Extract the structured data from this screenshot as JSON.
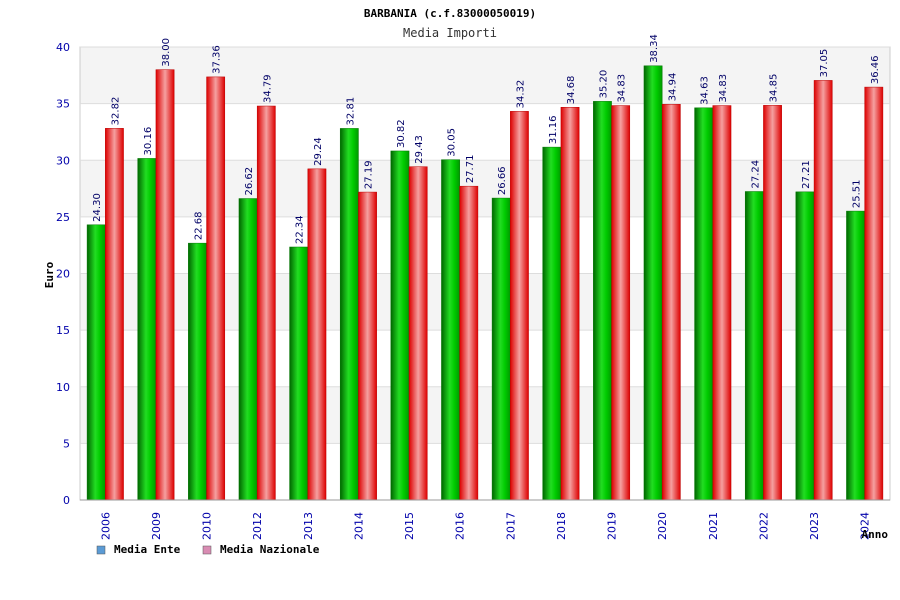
{
  "chart_data": {
    "type": "bar",
    "title": "BARBANIA (c.f.83000050019)",
    "subtitle": "Media Importi",
    "xlabel": "Anno",
    "ylabel": "Euro",
    "ylim": [
      0,
      40
    ],
    "yticks": [
      0,
      5,
      10,
      15,
      20,
      25,
      30,
      35,
      40
    ],
    "categories": [
      "2006",
      "2009",
      "2010",
      "2012",
      "2013",
      "2014",
      "2015",
      "2016",
      "2017",
      "2018",
      "2019",
      "2020",
      "2021",
      "2022",
      "2023",
      "2024"
    ],
    "series": [
      {
        "name": "Media Ente",
        "color": "#00cc00",
        "legend_color": "#5b9bd5",
        "values": [
          24.3,
          30.16,
          22.68,
          26.62,
          22.34,
          32.81,
          30.82,
          30.05,
          26.66,
          31.16,
          35.2,
          38.34,
          34.63,
          27.24,
          27.21,
          25.51
        ],
        "labels": [
          "24.30",
          "30.16",
          "22.68",
          "26.62",
          "22.34",
          "32.81",
          "30.82",
          "30.05",
          "26.66",
          "31.16",
          "35.20",
          "38.34",
          "34.63",
          "27.24",
          "27.21",
          "25.51"
        ]
      },
      {
        "name": "Media Nazionale",
        "color": "#ee1111",
        "legend_color": "#d98cb3",
        "values": [
          32.82,
          38.0,
          37.36,
          34.79,
          29.24,
          27.19,
          29.43,
          27.71,
          34.32,
          34.68,
          34.83,
          34.94,
          34.83,
          34.85,
          37.05,
          36.46
        ],
        "labels": [
          "32.82",
          "38.00",
          "37.36",
          "34.79",
          "29.24",
          "27.19",
          "29.43",
          "27.71",
          "34.32",
          "34.68",
          "34.83",
          "34.94",
          "34.83",
          "34.85",
          "37.05",
          "36.46"
        ]
      }
    ],
    "grid": true,
    "legend_position": "bottom-left"
  }
}
